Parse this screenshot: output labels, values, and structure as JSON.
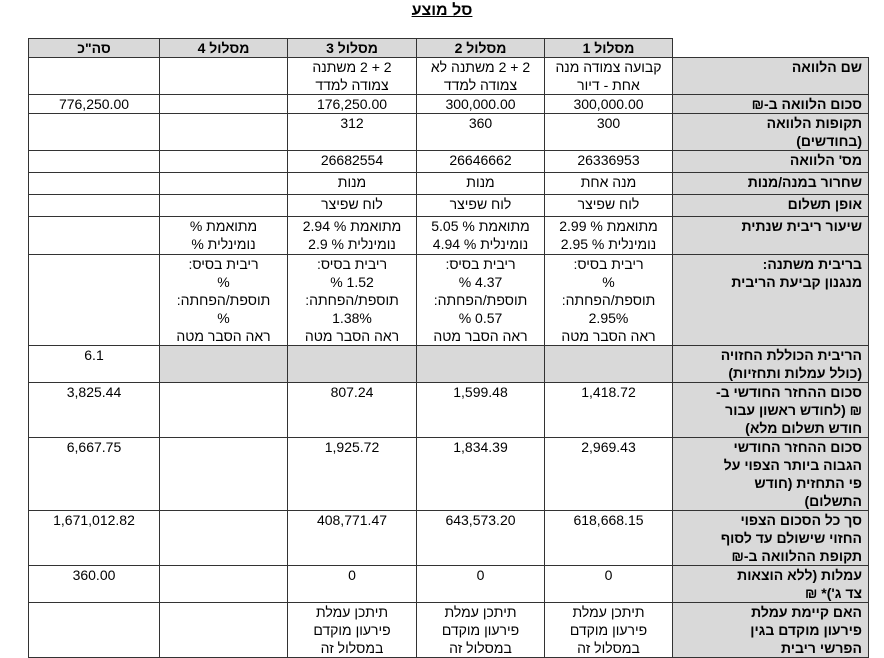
{
  "title": "סל מוצע",
  "headers": [
    "מסלול 1",
    "מסלול 2",
    "מסלול 3",
    "מסלול 4",
    "סה\"כ"
  ],
  "rows": [
    {
      "label": "שם הלוואה",
      "cells": [
        "קבועה צמודה מנה\nאחת - דיור",
        "2 + 2 משתנה לא\nצמודה למדד",
        "2 + 2 משתנה\nצמודה למדד",
        "",
        ""
      ]
    },
    {
      "label": "סכום הלוואה ב-₪",
      "cells": [
        "300,000.00",
        "300,000.00",
        "176,250.00",
        "",
        "776,250.00"
      ]
    },
    {
      "label": "תקופות הלוואה\n(בחודשים)",
      "cells": [
        "300",
        "360",
        "312",
        "",
        ""
      ]
    },
    {
      "label": "מס' הלוואה",
      "cells": [
        "26336953",
        "26646662",
        "26682554",
        "",
        ""
      ]
    },
    {
      "label": "שחרור במנה/מנות",
      "cells": [
        "מנה אחת",
        "מנות",
        "מנות",
        "",
        ""
      ]
    },
    {
      "label": "אופן תשלום",
      "cells": [
        "לוח שפיצר",
        "לוח שפיצר",
        "לוח שפיצר",
        "",
        ""
      ]
    },
    {
      "label": "שיעור ריבית שנתית",
      "cells": [
        "מתואמת % 2.99\nנומינלית % 2.95",
        "מתואמת % 5.05\nנומינלית % 4.94",
        "מתואמת % 2.94\nנומינלית % 2.9",
        "מתואמת %\nנומינלית %",
        ""
      ]
    },
    {
      "label": "בריבית משתנה:\nמנגנון קביעת הריבית",
      "cells": [
        "ריבית בסיס:\n%\nתוספת/הפחתה:\n2.95%\nראה הסבר מטה",
        "ריבית בסיס:\n4.37 %\nתוספת/הפחתה:\n0.57 %\nראה הסבר מטה",
        "ריבית בסיס:\n1.52 %\nתוספת/הפחתה:\n1.38%\nראה הסבר מטה",
        "ריבית בסיס:\n%\nתוספת/הפחתה:\n%\nראה הסבר מטה",
        ""
      ]
    },
    {
      "label": "הריבית הכוללת החזויה\n(כולל עמלות ותחזיות)",
      "cells": [
        "",
        "",
        "",
        "",
        "6.1"
      ],
      "gray": true
    },
    {
      "label": "סכום ההחזר החודשי ב-\n₪ (לחודש ראשון עבור\nחודש תשלום מלא)",
      "cells": [
        "1,418.72",
        "1,599.48",
        "807.24",
        "",
        "3,825.44"
      ]
    },
    {
      "label": "סכום ההחזר החודשי\nהגבוה ביותר הצפוי על\nפי התחזית (חודש\nהתשלום)",
      "cells": [
        "2,969.43",
        "1,834.39",
        "1,925.72",
        "",
        "6,667.75"
      ]
    },
    {
      "label": "סך כל הסכום הצפוי\nהחזוי שישולם עד לסוף\nתקופת ההלוואה ב-₪",
      "cells": [
        "618,668.15",
        "643,573.20",
        "408,771.47",
        "",
        "1,671,012.82"
      ]
    },
    {
      "label": "עמלות (ללא הוצאות\nצד ג')* ₪",
      "cells": [
        "0",
        "0",
        "0",
        "",
        "360.00"
      ]
    },
    {
      "label": "האם קיימת עמלת\nפירעון מוקדם בגין\nהפרשי ריבית",
      "cells": [
        "תיתכן עמלת\nפירעון מוקדם\nבמסלול זה",
        "תיתכן עמלת\nפירעון מוקדם\nבמסלול זה",
        "תיתכן עמלת\nפירעון מוקדם\nבמסלול זה",
        "",
        ""
      ]
    }
  ]
}
